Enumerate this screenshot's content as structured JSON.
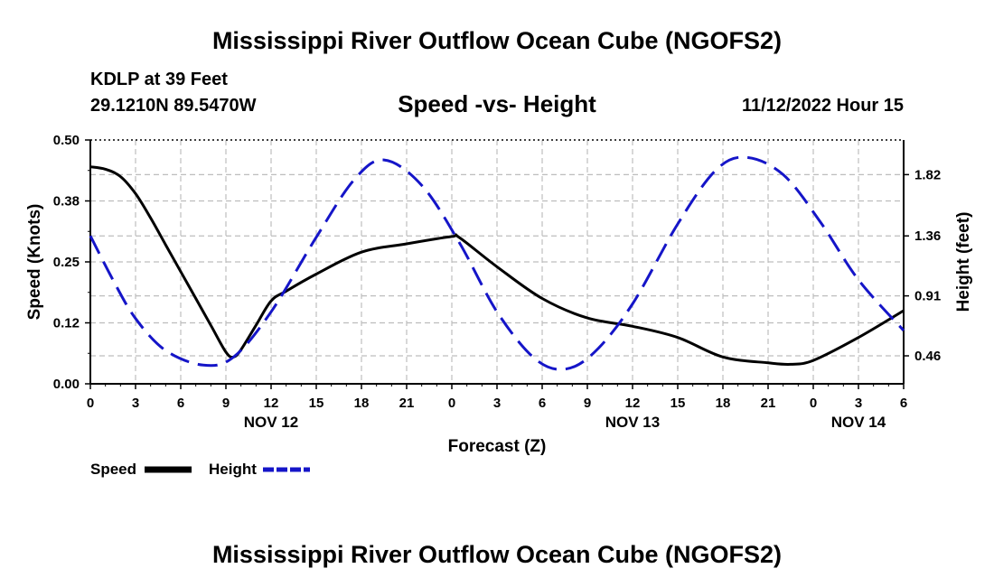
{
  "header": {
    "title": "Mississippi River Outflow Ocean Cube (NGOFS2)",
    "station": "KDLP at 39 Feet",
    "coordinates": "29.1210N  89.5470W",
    "subtitle": "Speed -vs- Height",
    "datetime": "11/12/2022 Hour 15"
  },
  "footer": {
    "title": "Mississippi River Outflow Ocean Cube (NGOFS2)"
  },
  "legend": {
    "speed_label": "Speed",
    "height_label": "Height"
  },
  "chart_data": {
    "type": "line",
    "title": "Speed -vs- Height",
    "xlabel": "Forecast (Z)",
    "ylabel": "Speed (Knots)",
    "y2label": "Height (feet)",
    "xlim": [
      0,
      54
    ],
    "ylim": [
      0,
      0.5
    ],
    "y2lim": [
      0.25,
      2.08
    ],
    "x_ticks": [
      0,
      3,
      6,
      9,
      12,
      15,
      18,
      21,
      24,
      27,
      30,
      33,
      36,
      39,
      42,
      45,
      48,
      51,
      54
    ],
    "x_tick_labels": [
      "0",
      "3",
      "6",
      "9",
      "12",
      "15",
      "18",
      "21",
      "0",
      "3",
      "6",
      "9",
      "12",
      "15",
      "18",
      "21",
      "0",
      "3",
      "6"
    ],
    "y_ticks": [
      0,
      0.125,
      0.25,
      0.375,
      0.5
    ],
    "y_tick_labels": [
      "0.00",
      "0.12",
      "0.25",
      "0.38",
      "0.50"
    ],
    "y2_ticks": [
      0.46,
      0.91,
      1.36,
      1.82
    ],
    "y2_tick_labels": [
      "0.46",
      "0.91",
      "1.36",
      "1.82"
    ],
    "date_labels": [
      {
        "x": 12,
        "label": "NOV 12"
      },
      {
        "x": 36,
        "label": "NOV 13"
      },
      {
        "x": 51,
        "label": "NOV 14"
      }
    ],
    "grid": true,
    "legend_position": "bottom-left",
    "series": [
      {
        "name": "Speed",
        "axis": "left",
        "color": "#000000",
        "dash": "solid",
        "x": [
          0,
          1,
          2,
          3,
          4,
          5,
          6,
          7,
          8,
          9,
          9.5,
          10,
          11,
          12,
          13,
          15,
          18,
          21,
          24,
          24.5,
          27,
          30,
          33,
          36,
          39,
          42,
          45,
          46.5,
          48,
          51,
          54
        ],
        "y": [
          0.445,
          0.44,
          0.425,
          0.39,
          0.34,
          0.285,
          0.23,
          0.175,
          0.12,
          0.065,
          0.055,
          0.07,
          0.12,
          0.17,
          0.19,
          0.225,
          0.27,
          0.287,
          0.302,
          0.3,
          0.24,
          0.175,
          0.135,
          0.118,
          0.095,
          0.055,
          0.043,
          0.04,
          0.048,
          0.095,
          0.15
        ]
      },
      {
        "name": "Height",
        "axis": "right",
        "color": "#1515c8",
        "dash": "dashed",
        "x": [
          0,
          1.5,
          3,
          5,
          7.5,
          9.5,
          12,
          15,
          17.5,
          19.5,
          22,
          24.5,
          27,
          29.5,
          31.5,
          33.5,
          36,
          39,
          41.5,
          43.5,
          46,
          48.5,
          51,
          54
        ],
        "y": [
          1.36,
          1.03,
          0.74,
          0.5,
          0.39,
          0.45,
          0.79,
          1.35,
          1.78,
          1.93,
          1.74,
          1.31,
          0.79,
          0.44,
          0.36,
          0.49,
          0.85,
          1.45,
          1.85,
          1.95,
          1.82,
          1.46,
          1.03,
          0.65
        ]
      }
    ]
  }
}
